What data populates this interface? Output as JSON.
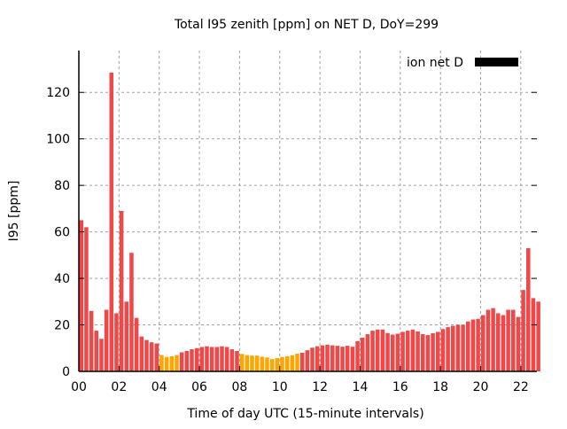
{
  "chart_data": {
    "type": "bar",
    "title": "Total I95 zenith [ppm] on NET D, DoY=299",
    "xlabel": "Time of day UTC (15-minute intervals)",
    "ylabel": "I95 [ppm]",
    "xlim": [
      0,
      22.8
    ],
    "ylim": [
      0,
      138
    ],
    "grid": true,
    "x_ticks": [
      0,
      2,
      4,
      6,
      8,
      10,
      12,
      14,
      16,
      18,
      20,
      22
    ],
    "x_tick_labels": [
      "00",
      "02",
      "04",
      "06",
      "08",
      "10",
      "12",
      "14",
      "16",
      "18",
      "20",
      "22"
    ],
    "y_ticks": [
      0,
      20,
      40,
      60,
      80,
      100,
      120
    ],
    "y_tick_labels": [
      "0",
      "20",
      "40",
      "60",
      "80",
      "100",
      "120"
    ],
    "legend": {
      "label": "ion net D",
      "placement": "top-right",
      "color": "#000000"
    },
    "interval_hours": 0.25,
    "colors": {
      "high": "#f04848",
      "low": "#ffa500"
    },
    "values": [
      65,
      62,
      26,
      17.5,
      14,
      26.5,
      128.5,
      25,
      69,
      30,
      51,
      23,
      15,
      13.5,
      12.5,
      12,
      7,
      6.2,
      6.5,
      7,
      8.2,
      8.8,
      9.5,
      10,
      10.5,
      10.8,
      10.5,
      10.5,
      10.8,
      10.5,
      9.5,
      8.8,
      7.5,
      7,
      6.8,
      6.8,
      6.3,
      6,
      5.3,
      5.7,
      6.2,
      6.5,
      6.9,
      7.6,
      8,
      9.1,
      10.2,
      10.8,
      11.2,
      11.5,
      11.2,
      11,
      10.6,
      11,
      10.6,
      13,
      14.5,
      16,
      17.5,
      18,
      18,
      16.5,
      15.8,
      16.2,
      17,
      17.5,
      18,
      17.2,
      16,
      15.6,
      16.4,
      17,
      18.2,
      19,
      19.6,
      20,
      20,
      21.5,
      22.3,
      22.6,
      24.2,
      26.5,
      27.2,
      25,
      24.2,
      26.5,
      26.5,
      23.4,
      35,
      53,
      31.5,
      30
    ],
    "level": [
      "high",
      "high",
      "high",
      "high",
      "high",
      "high",
      "high",
      "high",
      "high",
      "high",
      "high",
      "high",
      "high",
      "high",
      "high",
      "high",
      "low",
      "low",
      "low",
      "low",
      "high",
      "high",
      "high",
      "high",
      "high",
      "high",
      "high",
      "high",
      "high",
      "high",
      "high",
      "high",
      "low",
      "low",
      "low",
      "low",
      "low",
      "low",
      "low",
      "low",
      "low",
      "low",
      "low",
      "low",
      "high",
      "high",
      "high",
      "high",
      "high",
      "high",
      "high",
      "high",
      "high",
      "high",
      "high",
      "high",
      "high",
      "high",
      "high",
      "high",
      "high",
      "high",
      "high",
      "high",
      "high",
      "high",
      "high",
      "high",
      "high",
      "high",
      "high",
      "high",
      "high",
      "high",
      "high",
      "high",
      "high",
      "high",
      "high",
      "high",
      "high",
      "high",
      "high",
      "high",
      "high",
      "high",
      "high",
      "high",
      "high",
      "high",
      "high",
      "high"
    ]
  }
}
